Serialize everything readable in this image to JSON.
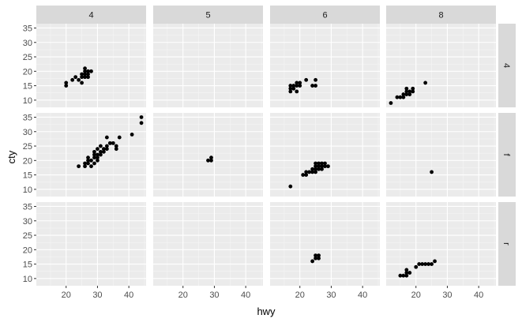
{
  "chart_data": {
    "type": "scatter",
    "facet_layout": "grid",
    "xlabel": "hwy",
    "ylabel": "cty",
    "xlim": [
      10.5,
      45.5
    ],
    "ylim": [
      7.5,
      36.5
    ],
    "x_ticks": [
      20,
      30,
      40
    ],
    "y_ticks": [
      10,
      15,
      20,
      25,
      30,
      35
    ],
    "col_facets": [
      "4",
      "5",
      "6",
      "8"
    ],
    "row_facets": [
      "4",
      "f",
      "r"
    ],
    "grid": true,
    "point_color": "#000000",
    "panel_background": "#ebebeb",
    "strip_background": "#d9d9d9",
    "panels": [
      {
        "row": "4",
        "col": "4",
        "points": [
          [
            20,
            15
          ],
          [
            20,
            16
          ],
          [
            22,
            17
          ],
          [
            23,
            18
          ],
          [
            24,
            17
          ],
          [
            25,
            19
          ],
          [
            25,
            18
          ],
          [
            25,
            16
          ],
          [
            26,
            19
          ],
          [
            26,
            20
          ],
          [
            26,
            21
          ],
          [
            27,
            18
          ],
          [
            27,
            19
          ],
          [
            28,
            20
          ],
          [
            26,
            18
          ],
          [
            27,
            20
          ]
        ]
      },
      {
        "row": "4",
        "col": "5",
        "points": []
      },
      {
        "row": "4",
        "col": "6",
        "points": [
          [
            17,
            13
          ],
          [
            17,
            14
          ],
          [
            17,
            15
          ],
          [
            18,
            14
          ],
          [
            18,
            15
          ],
          [
            19,
            13
          ],
          [
            19,
            15
          ],
          [
            19,
            16
          ],
          [
            20,
            15
          ],
          [
            20,
            16
          ],
          [
            22,
            17
          ],
          [
            24,
            15
          ],
          [
            25,
            15
          ],
          [
            25,
            17
          ]
        ]
      },
      {
        "row": "4",
        "col": "8",
        "points": [
          [
            12,
            9
          ],
          [
            14,
            11
          ],
          [
            15,
            11
          ],
          [
            16,
            11
          ],
          [
            16,
            12
          ],
          [
            17,
            12
          ],
          [
            17,
            13
          ],
          [
            17,
            14
          ],
          [
            18,
            12
          ],
          [
            18,
            13
          ],
          [
            19,
            13
          ],
          [
            19,
            14
          ],
          [
            23,
            16
          ]
        ]
      },
      {
        "row": "f",
        "col": "4",
        "points": [
          [
            24,
            18
          ],
          [
            26,
            18
          ],
          [
            26,
            19
          ],
          [
            27,
            19
          ],
          [
            27,
            20
          ],
          [
            27,
            21
          ],
          [
            28,
            18
          ],
          [
            28,
            20
          ],
          [
            29,
            19
          ],
          [
            29,
            21
          ],
          [
            29,
            22
          ],
          [
            29,
            23
          ],
          [
            30,
            20
          ],
          [
            30,
            21
          ],
          [
            30,
            22
          ],
          [
            30,
            24
          ],
          [
            31,
            22
          ],
          [
            31,
            23
          ],
          [
            31,
            25
          ],
          [
            32,
            23
          ],
          [
            32,
            24
          ],
          [
            33,
            24
          ],
          [
            33,
            25
          ],
          [
            33,
            28
          ],
          [
            34,
            26
          ],
          [
            35,
            26
          ],
          [
            36,
            24
          ],
          [
            36,
            25
          ],
          [
            37,
            28
          ],
          [
            41,
            29
          ],
          [
            44,
            33
          ],
          [
            44,
            35
          ]
        ]
      },
      {
        "row": "f",
        "col": "5",
        "points": [
          [
            28,
            20
          ],
          [
            29,
            20
          ],
          [
            29,
            21
          ]
        ]
      },
      {
        "row": "f",
        "col": "6",
        "points": [
          [
            17,
            11
          ],
          [
            21,
            15
          ],
          [
            22,
            15
          ],
          [
            22,
            16
          ],
          [
            23,
            16
          ],
          [
            24,
            16
          ],
          [
            24,
            17
          ],
          [
            25,
            16
          ],
          [
            25,
            17
          ],
          [
            25,
            18
          ],
          [
            25,
            19
          ],
          [
            26,
            17
          ],
          [
            26,
            18
          ],
          [
            26,
            19
          ],
          [
            27,
            17
          ],
          [
            27,
            18
          ],
          [
            27,
            19
          ],
          [
            28,
            18
          ],
          [
            28,
            19
          ],
          [
            29,
            18
          ]
        ]
      },
      {
        "row": "f",
        "col": "8",
        "points": [
          [
            25,
            16
          ]
        ]
      },
      {
        "row": "r",
        "col": "4",
        "points": []
      },
      {
        "row": "r",
        "col": "5",
        "points": []
      },
      {
        "row": "r",
        "col": "6",
        "points": [
          [
            24,
            16
          ],
          [
            25,
            17
          ],
          [
            25,
            18
          ],
          [
            26,
            17
          ],
          [
            26,
            18
          ]
        ]
      },
      {
        "row": "r",
        "col": "8",
        "points": [
          [
            15,
            11
          ],
          [
            16,
            11
          ],
          [
            17,
            11
          ],
          [
            17,
            12
          ],
          [
            17,
            13
          ],
          [
            18,
            12
          ],
          [
            20,
            14
          ],
          [
            21,
            15
          ],
          [
            22,
            15
          ],
          [
            23,
            15
          ],
          [
            24,
            15
          ],
          [
            25,
            15
          ],
          [
            26,
            16
          ]
        ]
      }
    ]
  }
}
